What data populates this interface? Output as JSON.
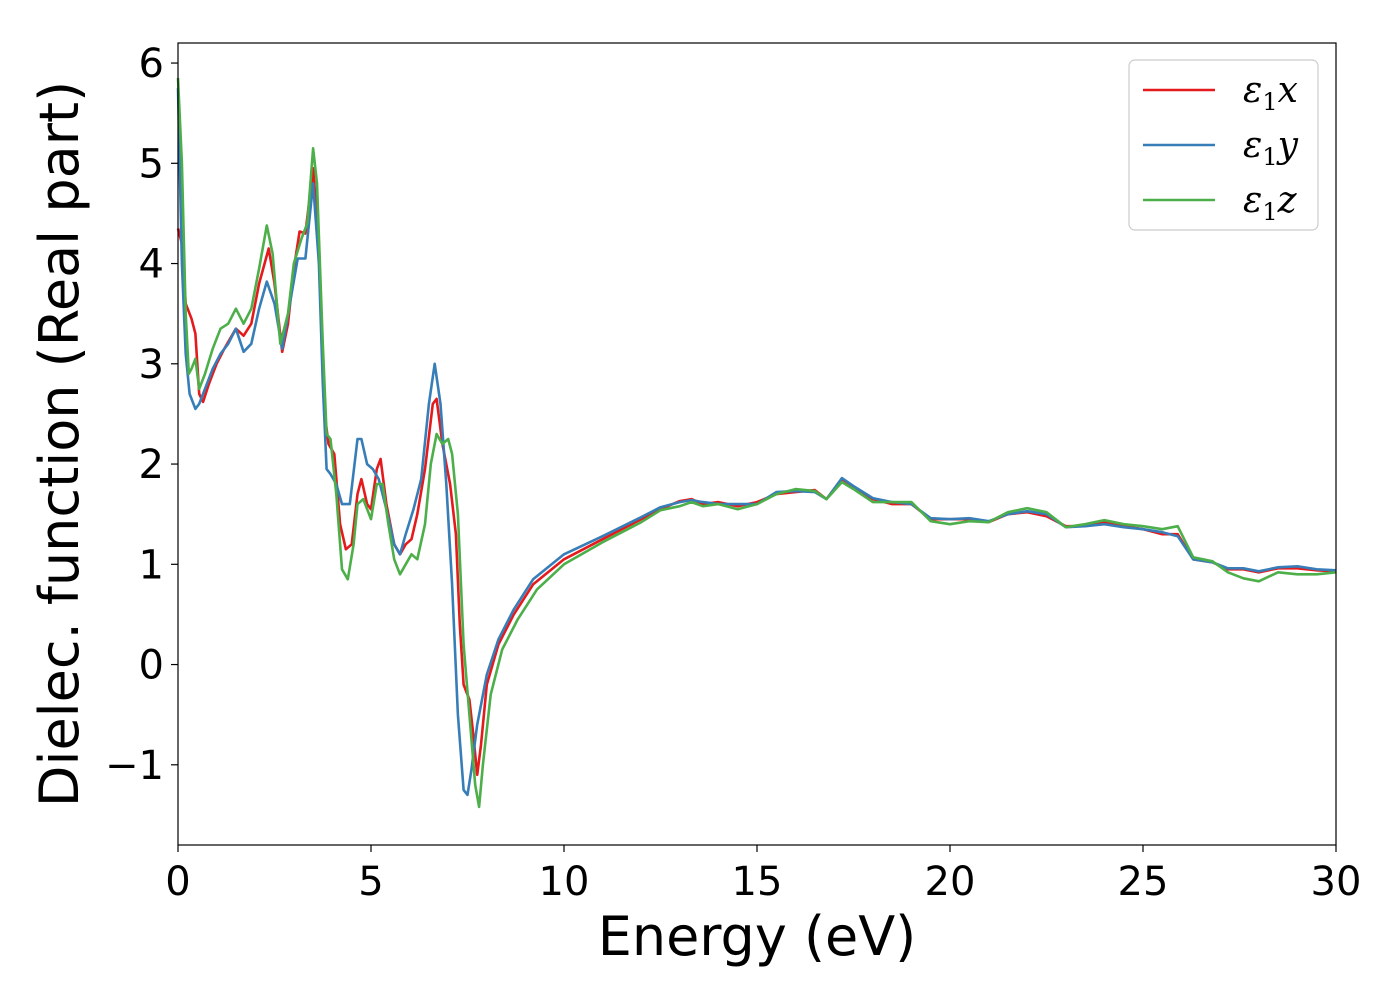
{
  "chart_data": {
    "type": "line",
    "title": "",
    "xlabel": "Energy (eV)",
    "ylabel": "Dielec. function (Real part)",
    "xlim": [
      0,
      30
    ],
    "ylim": [
      -1.8,
      6.2
    ],
    "xticks": [
      0,
      5,
      10,
      15,
      20,
      25,
      30
    ],
    "xtick_labels": [
      "0",
      "5",
      "10",
      "15",
      "20",
      "25",
      "30"
    ],
    "yticks": [
      -1,
      0,
      1,
      2,
      3,
      4,
      5,
      6
    ],
    "ytick_labels": [
      "−1",
      "0",
      "1",
      "2",
      "3",
      "4",
      "5",
      "6"
    ],
    "grid": false,
    "legend_position": "top-right",
    "series": [
      {
        "name": "ε1x",
        "legend_base": "ε",
        "legend_sub": "1",
        "legend_tail": "x",
        "color": "#e41a1c",
        "points": [
          [
            0,
            4.35
          ],
          [
            0.1,
            4.2
          ],
          [
            0.2,
            3.6
          ],
          [
            0.35,
            3.45
          ],
          [
            0.45,
            3.3
          ],
          [
            0.55,
            2.7
          ],
          [
            0.65,
            2.62
          ],
          [
            0.8,
            2.8
          ],
          [
            1.0,
            3.0
          ],
          [
            1.2,
            3.15
          ],
          [
            1.5,
            3.35
          ],
          [
            1.7,
            3.28
          ],
          [
            1.9,
            3.4
          ],
          [
            2.1,
            3.8
          ],
          [
            2.35,
            4.15
          ],
          [
            2.5,
            3.8
          ],
          [
            2.7,
            3.12
          ],
          [
            2.85,
            3.4
          ],
          [
            3.0,
            3.95
          ],
          [
            3.15,
            4.32
          ],
          [
            3.3,
            4.3
          ],
          [
            3.5,
            4.95
          ],
          [
            3.65,
            4.2
          ],
          [
            3.8,
            2.5
          ],
          [
            3.9,
            2.2
          ],
          [
            4.05,
            2.1
          ],
          [
            4.2,
            1.4
          ],
          [
            4.35,
            1.15
          ],
          [
            4.5,
            1.2
          ],
          [
            4.65,
            1.7
          ],
          [
            4.75,
            1.85
          ],
          [
            4.9,
            1.6
          ],
          [
            5.0,
            1.55
          ],
          [
            5.15,
            1.95
          ],
          [
            5.25,
            2.05
          ],
          [
            5.4,
            1.6
          ],
          [
            5.6,
            1.2
          ],
          [
            5.75,
            1.1
          ],
          [
            5.9,
            1.2
          ],
          [
            6.05,
            1.25
          ],
          [
            6.2,
            1.5
          ],
          [
            6.4,
            1.95
          ],
          [
            6.6,
            2.6
          ],
          [
            6.7,
            2.65
          ],
          [
            6.85,
            2.2
          ],
          [
            7.05,
            1.8
          ],
          [
            7.2,
            1.3
          ],
          [
            7.3,
            0.4
          ],
          [
            7.4,
            -0.2
          ],
          [
            7.55,
            -0.35
          ],
          [
            7.65,
            -0.7
          ],
          [
            7.75,
            -1.1
          ],
          [
            7.85,
            -0.8
          ],
          [
            8.0,
            -0.2
          ],
          [
            8.3,
            0.2
          ],
          [
            8.7,
            0.5
          ],
          [
            9.2,
            0.8
          ],
          [
            10,
            1.05
          ],
          [
            11,
            1.25
          ],
          [
            12,
            1.45
          ],
          [
            12.5,
            1.55
          ],
          [
            13,
            1.63
          ],
          [
            13.3,
            1.65
          ],
          [
            13.6,
            1.6
          ],
          [
            14,
            1.62
          ],
          [
            14.5,
            1.58
          ],
          [
            15,
            1.62
          ],
          [
            15.5,
            1.7
          ],
          [
            16,
            1.72
          ],
          [
            16.5,
            1.74
          ],
          [
            16.8,
            1.65
          ],
          [
            17.2,
            1.85
          ],
          [
            17.5,
            1.77
          ],
          [
            18,
            1.65
          ],
          [
            18.5,
            1.6
          ],
          [
            19,
            1.6
          ],
          [
            19.5,
            1.45
          ],
          [
            20,
            1.45
          ],
          [
            20.5,
            1.45
          ],
          [
            21,
            1.42
          ],
          [
            21.5,
            1.5
          ],
          [
            22,
            1.52
          ],
          [
            22.5,
            1.48
          ],
          [
            23,
            1.38
          ],
          [
            23.5,
            1.38
          ],
          [
            24,
            1.42
          ],
          [
            24.5,
            1.38
          ],
          [
            25,
            1.35
          ],
          [
            25.5,
            1.3
          ],
          [
            25.9,
            1.3
          ],
          [
            26.3,
            1.05
          ],
          [
            26.8,
            1.02
          ],
          [
            27.2,
            0.95
          ],
          [
            27.6,
            0.95
          ],
          [
            28,
            0.92
          ],
          [
            28.5,
            0.96
          ],
          [
            29,
            0.96
          ],
          [
            29.5,
            0.94
          ],
          [
            30,
            0.93
          ]
        ]
      },
      {
        "name": "ε1y",
        "legend_base": "ε",
        "legend_sub": "1",
        "legend_tail": "y",
        "color": "#377eb8",
        "points": [
          [
            0,
            5.75
          ],
          [
            0.1,
            4.0
          ],
          [
            0.2,
            3.1
          ],
          [
            0.3,
            2.7
          ],
          [
            0.45,
            2.55
          ],
          [
            0.55,
            2.6
          ],
          [
            0.7,
            2.75
          ],
          [
            0.9,
            2.95
          ],
          [
            1.1,
            3.1
          ],
          [
            1.3,
            3.2
          ],
          [
            1.5,
            3.35
          ],
          [
            1.7,
            3.12
          ],
          [
            1.9,
            3.2
          ],
          [
            2.1,
            3.55
          ],
          [
            2.3,
            3.82
          ],
          [
            2.5,
            3.6
          ],
          [
            2.7,
            3.15
          ],
          [
            2.9,
            3.6
          ],
          [
            3.1,
            4.05
          ],
          [
            3.3,
            4.05
          ],
          [
            3.5,
            4.8
          ],
          [
            3.65,
            4.0
          ],
          [
            3.75,
            2.8
          ],
          [
            3.85,
            1.95
          ],
          [
            3.95,
            1.9
          ],
          [
            4.1,
            1.8
          ],
          [
            4.25,
            1.6
          ],
          [
            4.45,
            1.6
          ],
          [
            4.65,
            2.25
          ],
          [
            4.75,
            2.25
          ],
          [
            4.9,
            2.0
          ],
          [
            5.05,
            1.95
          ],
          [
            5.2,
            1.85
          ],
          [
            5.4,
            1.55
          ],
          [
            5.6,
            1.2
          ],
          [
            5.75,
            1.1
          ],
          [
            5.9,
            1.3
          ],
          [
            6.1,
            1.55
          ],
          [
            6.3,
            1.85
          ],
          [
            6.5,
            2.6
          ],
          [
            6.65,
            3.0
          ],
          [
            6.8,
            2.6
          ],
          [
            6.95,
            1.8
          ],
          [
            7.1,
            0.8
          ],
          [
            7.25,
            -0.5
          ],
          [
            7.4,
            -1.25
          ],
          [
            7.5,
            -1.3
          ],
          [
            7.6,
            -1.05
          ],
          [
            7.75,
            -0.6
          ],
          [
            8.0,
            -0.1
          ],
          [
            8.3,
            0.25
          ],
          [
            8.7,
            0.55
          ],
          [
            9.2,
            0.85
          ],
          [
            10,
            1.1
          ],
          [
            11,
            1.28
          ],
          [
            12,
            1.47
          ],
          [
            12.5,
            1.57
          ],
          [
            13,
            1.62
          ],
          [
            13.3,
            1.64
          ],
          [
            13.6,
            1.62
          ],
          [
            14,
            1.6
          ],
          [
            14.5,
            1.6
          ],
          [
            15,
            1.6
          ],
          [
            15.5,
            1.72
          ],
          [
            16,
            1.73
          ],
          [
            16.5,
            1.72
          ],
          [
            16.8,
            1.65
          ],
          [
            17.2,
            1.86
          ],
          [
            17.5,
            1.78
          ],
          [
            18,
            1.66
          ],
          [
            18.5,
            1.62
          ],
          [
            19,
            1.6
          ],
          [
            19.5,
            1.46
          ],
          [
            20,
            1.45
          ],
          [
            20.5,
            1.46
          ],
          [
            21,
            1.43
          ],
          [
            21.5,
            1.5
          ],
          [
            22,
            1.53
          ],
          [
            22.5,
            1.5
          ],
          [
            23,
            1.37
          ],
          [
            23.5,
            1.38
          ],
          [
            24,
            1.4
          ],
          [
            24.5,
            1.37
          ],
          [
            25,
            1.35
          ],
          [
            25.5,
            1.32
          ],
          [
            25.9,
            1.28
          ],
          [
            26.3,
            1.05
          ],
          [
            26.8,
            1.02
          ],
          [
            27.2,
            0.96
          ],
          [
            27.6,
            0.96
          ],
          [
            28,
            0.93
          ],
          [
            28.5,
            0.97
          ],
          [
            29,
            0.98
          ],
          [
            29.5,
            0.95
          ],
          [
            30,
            0.94
          ]
        ]
      },
      {
        "name": "ε1z",
        "legend_base": "ε",
        "legend_sub": "1",
        "legend_tail": "z",
        "color": "#4daf4a",
        "points": [
          [
            0,
            5.85
          ],
          [
            0.1,
            5.0
          ],
          [
            0.2,
            3.5
          ],
          [
            0.28,
            2.9
          ],
          [
            0.35,
            2.95
          ],
          [
            0.45,
            3.05
          ],
          [
            0.55,
            2.75
          ],
          [
            0.7,
            2.9
          ],
          [
            0.9,
            3.15
          ],
          [
            1.1,
            3.35
          ],
          [
            1.3,
            3.4
          ],
          [
            1.5,
            3.55
          ],
          [
            1.7,
            3.4
          ],
          [
            1.9,
            3.55
          ],
          [
            2.1,
            3.95
          ],
          [
            2.3,
            4.38
          ],
          [
            2.45,
            4.1
          ],
          [
            2.65,
            3.2
          ],
          [
            2.85,
            3.5
          ],
          [
            3.0,
            4.0
          ],
          [
            3.2,
            4.25
          ],
          [
            3.35,
            4.4
          ],
          [
            3.5,
            5.15
          ],
          [
            3.6,
            4.8
          ],
          [
            3.75,
            3.2
          ],
          [
            3.85,
            2.3
          ],
          [
            3.95,
            2.25
          ],
          [
            4.1,
            1.7
          ],
          [
            4.25,
            0.95
          ],
          [
            4.4,
            0.85
          ],
          [
            4.55,
            1.2
          ],
          [
            4.65,
            1.6
          ],
          [
            4.8,
            1.65
          ],
          [
            5.0,
            1.45
          ],
          [
            5.15,
            1.8
          ],
          [
            5.3,
            1.8
          ],
          [
            5.45,
            1.4
          ],
          [
            5.6,
            1.05
          ],
          [
            5.75,
            0.9
          ],
          [
            5.9,
            1.0
          ],
          [
            6.05,
            1.1
          ],
          [
            6.2,
            1.05
          ],
          [
            6.4,
            1.4
          ],
          [
            6.55,
            2.0
          ],
          [
            6.7,
            2.3
          ],
          [
            6.85,
            2.2
          ],
          [
            7.0,
            2.25
          ],
          [
            7.1,
            2.1
          ],
          [
            7.25,
            1.5
          ],
          [
            7.4,
            0.2
          ],
          [
            7.55,
            -0.5
          ],
          [
            7.7,
            -1.2
          ],
          [
            7.8,
            -1.42
          ],
          [
            7.9,
            -1.0
          ],
          [
            8.1,
            -0.3
          ],
          [
            8.4,
            0.15
          ],
          [
            8.8,
            0.45
          ],
          [
            9.3,
            0.75
          ],
          [
            10,
            1.0
          ],
          [
            11,
            1.22
          ],
          [
            12,
            1.42
          ],
          [
            12.5,
            1.54
          ],
          [
            13,
            1.58
          ],
          [
            13.3,
            1.62
          ],
          [
            13.6,
            1.58
          ],
          [
            14,
            1.6
          ],
          [
            14.5,
            1.55
          ],
          [
            15,
            1.6
          ],
          [
            15.5,
            1.7
          ],
          [
            16,
            1.75
          ],
          [
            16.5,
            1.73
          ],
          [
            16.8,
            1.65
          ],
          [
            17.2,
            1.82
          ],
          [
            17.5,
            1.75
          ],
          [
            18,
            1.62
          ],
          [
            18.5,
            1.62
          ],
          [
            19,
            1.62
          ],
          [
            19.5,
            1.43
          ],
          [
            20,
            1.4
          ],
          [
            20.5,
            1.43
          ],
          [
            21,
            1.42
          ],
          [
            21.5,
            1.52
          ],
          [
            22,
            1.56
          ],
          [
            22.5,
            1.52
          ],
          [
            23,
            1.37
          ],
          [
            23.5,
            1.4
          ],
          [
            24,
            1.44
          ],
          [
            24.5,
            1.4
          ],
          [
            25,
            1.38
          ],
          [
            25.5,
            1.35
          ],
          [
            25.9,
            1.38
          ],
          [
            26.3,
            1.07
          ],
          [
            26.8,
            1.03
          ],
          [
            27.2,
            0.92
          ],
          [
            27.6,
            0.86
          ],
          [
            28,
            0.83
          ],
          [
            28.5,
            0.92
          ],
          [
            29,
            0.9
          ],
          [
            29.5,
            0.9
          ],
          [
            30,
            0.92
          ]
        ]
      }
    ]
  }
}
